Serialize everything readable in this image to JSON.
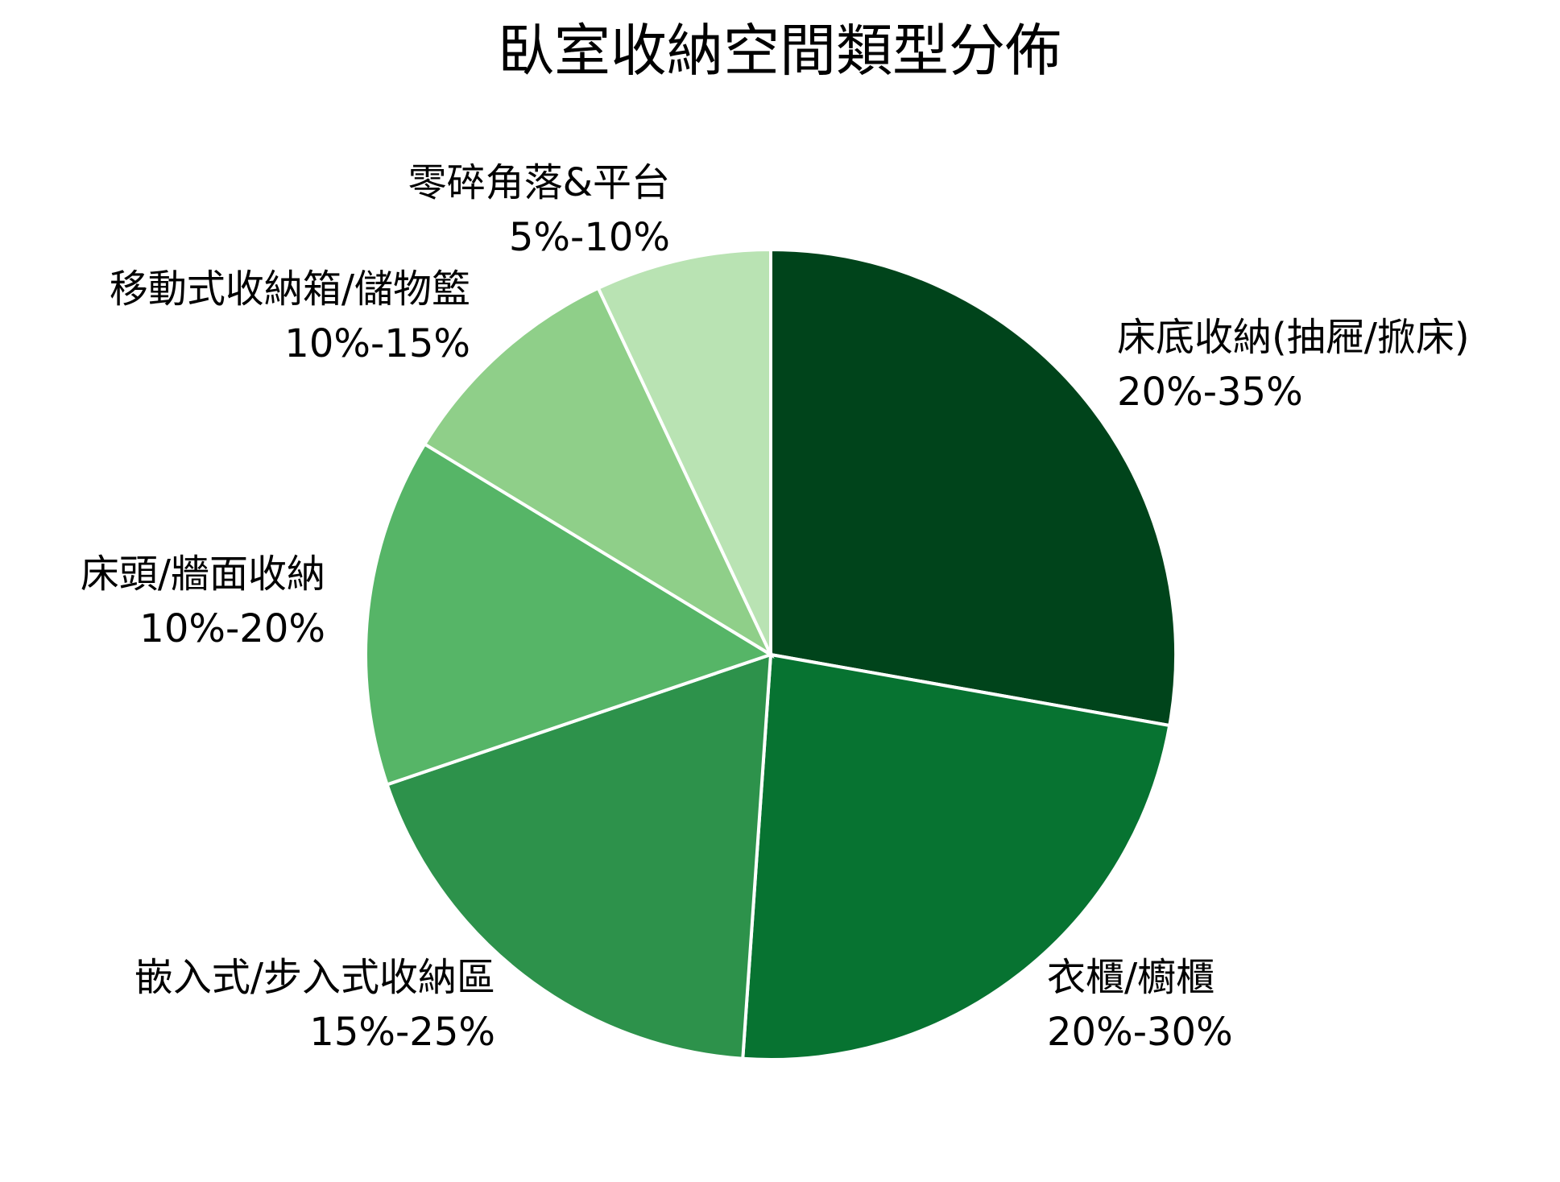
{
  "chart_data": {
    "type": "pie",
    "title": "臥室收納空間類型分佈",
    "categories": [
      "床底收納(抽屜/掀床)",
      "衣櫃/櫥櫃",
      "嵌入式/步入式收納區",
      "床頭/牆面收納",
      "移動式收納箱/儲物籃",
      "零碎角落&平台"
    ],
    "range_labels": [
      "20%-35%",
      "20%-30%",
      "15%-25%",
      "10%-20%",
      "10%-15%",
      "5%-10%"
    ],
    "values": [
      27.8,
      23.3,
      18.7,
      13.9,
      9.3,
      7.0
    ],
    "colors": [
      "#00441b",
      "#077331",
      "#2d924b",
      "#56b567",
      "#8fcf89",
      "#b9e3b3"
    ]
  }
}
